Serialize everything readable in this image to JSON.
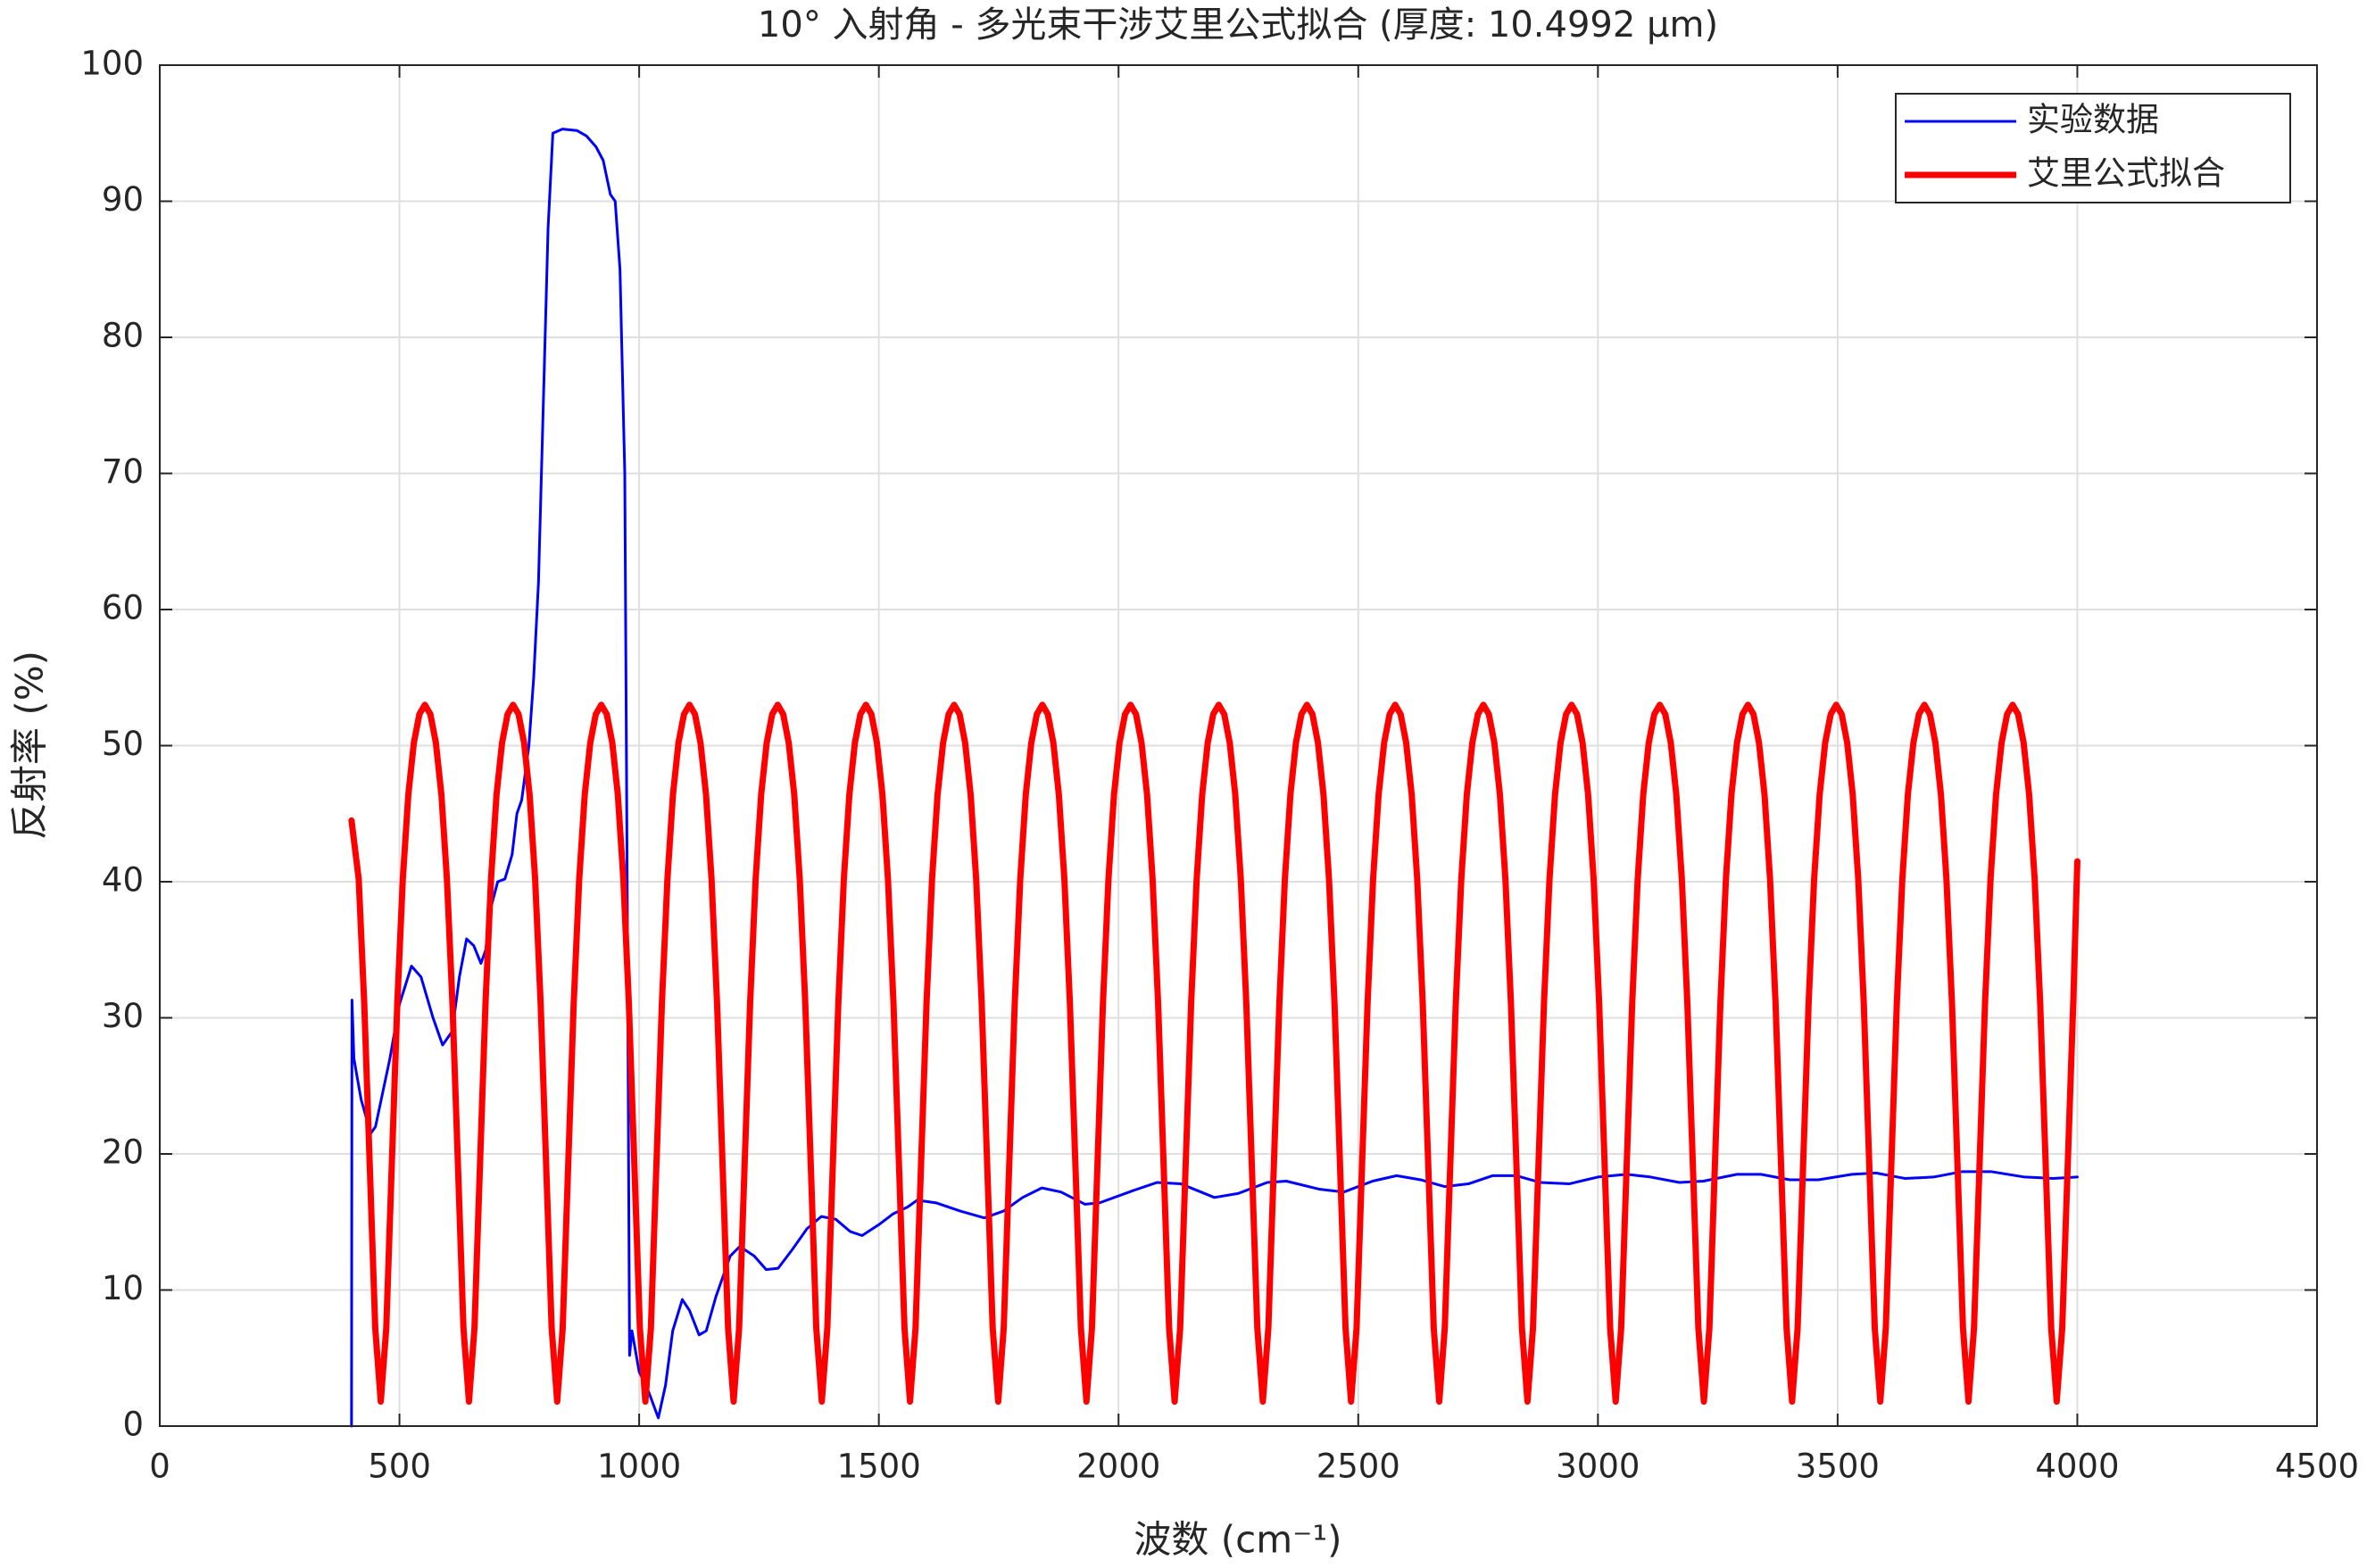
{
  "chart_data": {
    "type": "line",
    "title": "10° 入射角 - 多光束干涉艾里公式拟合 (厚度: 10.4992 μm)",
    "xlabel": "波数 (cm⁻¹)",
    "ylabel": "反射率 (%)",
    "xlim": [
      0,
      4500
    ],
    "xticks": [
      0,
      500,
      1000,
      1500,
      2000,
      2500,
      3000,
      3500,
      4000,
      4500
    ],
    "ylim": [
      0,
      100
    ],
    "yticks": [
      0,
      10,
      20,
      30,
      40,
      50,
      60,
      70,
      80,
      90,
      100
    ],
    "grid": true,
    "legend": "northeast",
    "series": [
      {
        "name": "实验数据",
        "color": "#0000ff",
        "x": [
          400,
          401,
          405,
          420,
          440,
          450,
          480,
          500,
          525,
          545,
          570,
          590,
          610,
          625,
          640,
          655,
          670,
          680,
          690,
          705,
          720,
          735,
          745,
          755,
          770,
          780,
          790,
          800,
          810,
          820,
          840,
          870,
          890,
          910,
          925,
          940,
          950,
          960,
          970,
          975,
          980,
          985,
          1000,
          1020,
          1040,
          1055,
          1070,
          1090,
          1105,
          1125,
          1140,
          1160,
          1190,
          1210,
          1240,
          1265,
          1290,
          1320,
          1350,
          1380,
          1410,
          1440,
          1465,
          1500,
          1530,
          1560,
          1580,
          1620,
          1670,
          1720,
          1760,
          1800,
          1840,
          1880,
          1930,
          1960,
          2030,
          2080,
          2130,
          2200,
          2250,
          2310,
          2350,
          2420,
          2470,
          2530,
          2580,
          2630,
          2680,
          2730,
          2780,
          2830,
          2880,
          2940,
          3000,
          3060,
          3110,
          3170,
          3220,
          3290,
          3340,
          3400,
          3460,
          3530,
          3580,
          3640,
          3700,
          3760,
          3820,
          3890,
          3950,
          4000
        ],
        "values": [
          0,
          31.3,
          27,
          24,
          21.5,
          22,
          27,
          31,
          33.8,
          33,
          30,
          28,
          29,
          33,
          35.8,
          35.3,
          34,
          35,
          38,
          40,
          40.2,
          42,
          45,
          46,
          50,
          55,
          62,
          75,
          88,
          95,
          95.3,
          95.2,
          94.8,
          94,
          93,
          90.5,
          90,
          85,
          70,
          40,
          5.2,
          7,
          4,
          2.5,
          0.6,
          3,
          7,
          9.3,
          8.5,
          6.7,
          7,
          9.5,
          12.5,
          13.2,
          12.5,
          11.5,
          11.6,
          13,
          14.5,
          15.4,
          15.2,
          14.3,
          14,
          14.8,
          15.6,
          16.1,
          16.6,
          16.4,
          15.8,
          15.3,
          15.8,
          16.8,
          17.5,
          17.2,
          16.3,
          16.4,
          17.3,
          17.9,
          17.8,
          16.8,
          17.1,
          17.9,
          18,
          17.4,
          17.2,
          18,
          18.4,
          18.1,
          17.6,
          17.8,
          18.4,
          18.4,
          17.9,
          17.8,
          18.3,
          18.5,
          18.3,
          17.9,
          18,
          18.5,
          18.5,
          18.1,
          18.1,
          18.5,
          18.6,
          18.2,
          18.3,
          18.7,
          18.7,
          18.3,
          18.2,
          18.3
        ]
      },
      {
        "name": "艾里公式拟合",
        "color": "#ff0000",
        "x": [
          400,
          415,
          426.5,
          438,
          449.5,
          461,
          472.5,
          484,
          495.5,
          507,
          518.5,
          530,
          541.5,
          553,
          564.5,
          576,
          587.5,
          599,
          610.5,
          622,
          633.5,
          645,
          656.5,
          668,
          679.5,
          691,
          702.5,
          714,
          725.5,
          737,
          748.5,
          760,
          771.5,
          783,
          794.5,
          806,
          817.5,
          829,
          840.5,
          852,
          863.5,
          875,
          886.5,
          898,
          909.5,
          921,
          932.5,
          944,
          955.5,
          967,
          978.5,
          990,
          1001.5,
          1013,
          1024.5,
          1036,
          1047.5,
          1059,
          1070.5,
          1082,
          1093.5,
          1105,
          1116.5,
          1128,
          1139.5,
          1151,
          1162.5,
          1174,
          1185.5,
          1197,
          1208.5,
          1220,
          1231.5,
          1243,
          1254.5,
          1266,
          1277.5,
          1289,
          1300.5,
          1312,
          1323.5,
          1335,
          1346.5,
          1358,
          1369.5,
          1381,
          1392.5,
          1404,
          1415.5,
          1427,
          1438.5,
          1450,
          1461.5,
          1473,
          1484.5,
          1496,
          1507.5,
          1519,
          1530.5,
          1542,
          1553.5,
          1565,
          1576.5,
          1588,
          1599.5,
          1611,
          1622.5,
          1634,
          1645.5,
          1657,
          1668.5,
          1680,
          1691.5,
          1703,
          1714.5,
          1726,
          1737.5,
          1749,
          1760.5,
          1772,
          1783.5,
          1795,
          1806.5,
          1818,
          1829.5,
          1841,
          1852.5,
          1864,
          1875.5,
          1887,
          1898.5,
          1910,
          1921.5,
          1933,
          1944.5,
          1956,
          1967.5,
          1979,
          1990.5,
          2002,
          2013.5,
          2025,
          2036.5,
          2048,
          2059.5,
          2071,
          2082.5,
          2094,
          2105.5,
          2117,
          2128.5,
          2140,
          2151.5,
          2163,
          2174.5,
          2186,
          2197.5,
          2209,
          2220.5,
          2232,
          2243.5,
          2255,
          2266.5,
          2278,
          2289.5,
          2301,
          2312.5,
          2324,
          2335.5,
          2347,
          2358.5,
          2370,
          2381.5,
          2393,
          2404.5,
          2416,
          2427.5,
          2439,
          2450.5,
          2462,
          2473.5,
          2485,
          2496.5,
          2508,
          2519.5,
          2531,
          2542.5,
          2554,
          2565.5,
          2577,
          2588.5,
          2600,
          2611.5,
          2623,
          2634.5,
          2646,
          2657.5,
          2669,
          2680.5,
          2692,
          2703.5,
          2715,
          2726.5,
          2738,
          2749.5,
          2761,
          2772.5,
          2784,
          2795.5,
          2807,
          2818.5,
          2830,
          2841.5,
          2853,
          2864.5,
          2876,
          2887.5,
          2899,
          2910.5,
          2922,
          2933.5,
          2945,
          2956.5,
          2968,
          2979.5,
          2991,
          3002.5,
          3014,
          3025.5,
          3037,
          3048.5,
          3060,
          3071.5,
          3083,
          3094.5,
          3106,
          3117.5,
          3129,
          3140.5,
          3152,
          3163.5,
          3175,
          3186.5,
          3198,
          3209.5,
          3221,
          3232.5,
          3244,
          3255.5,
          3267,
          3278.5,
          3290,
          3301.5,
          3313,
          3324.5,
          3336,
          3347.5,
          3359,
          3370.5,
          3382,
          3393.5,
          3405,
          3416.5,
          3428,
          3439.5,
          3451,
          3462.5,
          3474,
          3485.5,
          3497,
          3508.5,
          3520,
          3531.5,
          3543,
          3554.5,
          3566,
          3577.5,
          3589,
          3600.5,
          3612,
          3623.5,
          3635,
          3646.5,
          3658,
          3669.5,
          3681,
          3692.5,
          3704,
          3715.5,
          3727,
          3738.5,
          3750,
          3761.5,
          3773,
          3784.5,
          3796,
          3807.5,
          3819,
          3830.5,
          3842,
          3853.5,
          3865,
          3876.5,
          3888,
          3899.5,
          3911,
          3922.5,
          3934,
          3945.5,
          3957,
          3968.5,
          3980,
          3991.5,
          4000
        ],
        "values": [
          44.5,
          40.2,
          31.1,
          19.2,
          7.2,
          1.8,
          7.2,
          19.2,
          31.1,
          40.2,
          46.4,
          50.2,
          52.3,
          53,
          52.3,
          50.2,
          46.4,
          40.2,
          31.1,
          19.2,
          7.2,
          1.8,
          7.2,
          19.2,
          31.1,
          40.2,
          46.4,
          50.2,
          52.3,
          53,
          52.3,
          50.2,
          46.4,
          40.2,
          31.1,
          19.2,
          7.2,
          1.8,
          7.2,
          19.2,
          31.1,
          40.2,
          46.4,
          50.2,
          52.3,
          53,
          52.3,
          50.2,
          46.4,
          40.2,
          31.1,
          19.2,
          7.2,
          1.8,
          7.2,
          19.2,
          31.1,
          40.2,
          46.4,
          50.2,
          52.3,
          53,
          52.3,
          50.2,
          46.4,
          40.2,
          31.1,
          19.2,
          7.2,
          1.8,
          7.2,
          19.2,
          31.1,
          40.2,
          46.4,
          50.2,
          52.3,
          53,
          52.3,
          50.2,
          46.4,
          40.2,
          31.1,
          19.2,
          7.2,
          1.8,
          7.2,
          19.2,
          31.1,
          40.2,
          46.4,
          50.2,
          52.3,
          53,
          52.3,
          50.2,
          46.4,
          40.2,
          31.1,
          19.2,
          7.2,
          1.8,
          7.2,
          19.2,
          31.1,
          40.2,
          46.4,
          50.2,
          52.3,
          53,
          52.3,
          50.2,
          46.4,
          40.2,
          31.1,
          19.2,
          7.2,
          1.8,
          7.2,
          19.2,
          31.1,
          40.2,
          46.4,
          50.2,
          52.3,
          53,
          52.3,
          50.2,
          46.4,
          40.2,
          31.1,
          19.2,
          7.2,
          1.8,
          7.2,
          19.2,
          31.1,
          40.2,
          46.4,
          50.2,
          52.3,
          53,
          52.3,
          50.2,
          46.4,
          40.2,
          31.1,
          19.2,
          7.2,
          1.8,
          7.2,
          19.2,
          31.1,
          40.2,
          46.4,
          50.2,
          52.3,
          53,
          52.3,
          50.2,
          46.4,
          40.2,
          31.1,
          19.2,
          7.2,
          1.8,
          7.2,
          19.2,
          31.1,
          40.2,
          46.4,
          50.2,
          52.3,
          53,
          52.3,
          50.2,
          46.4,
          40.2,
          31.1,
          19.2,
          7.2,
          1.8,
          7.2,
          19.2,
          31.1,
          40.2,
          46.4,
          50.2,
          52.3,
          53,
          52.3,
          50.2,
          46.4,
          40.2,
          31.1,
          19.2,
          7.2,
          1.8,
          7.2,
          19.2,
          31.1,
          40.2,
          46.4,
          50.2,
          52.3,
          53,
          52.3,
          50.2,
          46.4,
          40.2,
          31.1,
          19.2,
          7.2,
          1.8,
          7.2,
          19.2,
          31.1,
          40.2,
          46.4,
          50.2,
          52.3,
          53,
          52.3,
          50.2,
          46.4,
          40.2,
          31.1,
          19.2,
          7.2,
          1.8,
          7.2,
          19.2,
          31.1,
          40.2,
          46.4,
          50.2,
          52.3,
          53,
          52.3,
          50.2,
          46.4,
          40.2,
          31.1,
          19.2,
          7.2,
          1.8,
          7.2,
          19.2,
          31.1,
          40.2,
          46.4,
          50.2,
          52.3,
          53,
          52.3,
          50.2,
          46.4,
          40.2,
          31.1,
          19.2,
          7.2,
          1.8,
          7.2,
          19.2,
          31.1,
          40.2,
          46.4,
          50.2,
          52.3,
          53,
          52.3,
          50.2,
          46.4,
          40.2,
          31.1,
          19.2,
          7.2,
          1.8,
          7.2,
          19.2,
          31.1,
          40.2,
          46.4,
          50.2,
          52.3,
          53,
          52.3,
          50.2,
          46.4,
          40.2,
          31.1,
          19.2,
          7.2,
          1.8,
          7.2,
          19.2,
          31.1,
          40.2,
          46.4,
          50.2,
          52.3,
          53,
          52.3,
          50.2,
          46.4,
          40.2,
          31.1,
          19.2,
          7.2,
          1.8,
          7.2,
          19.2,
          31.1,
          41.5
        ]
      }
    ]
  }
}
